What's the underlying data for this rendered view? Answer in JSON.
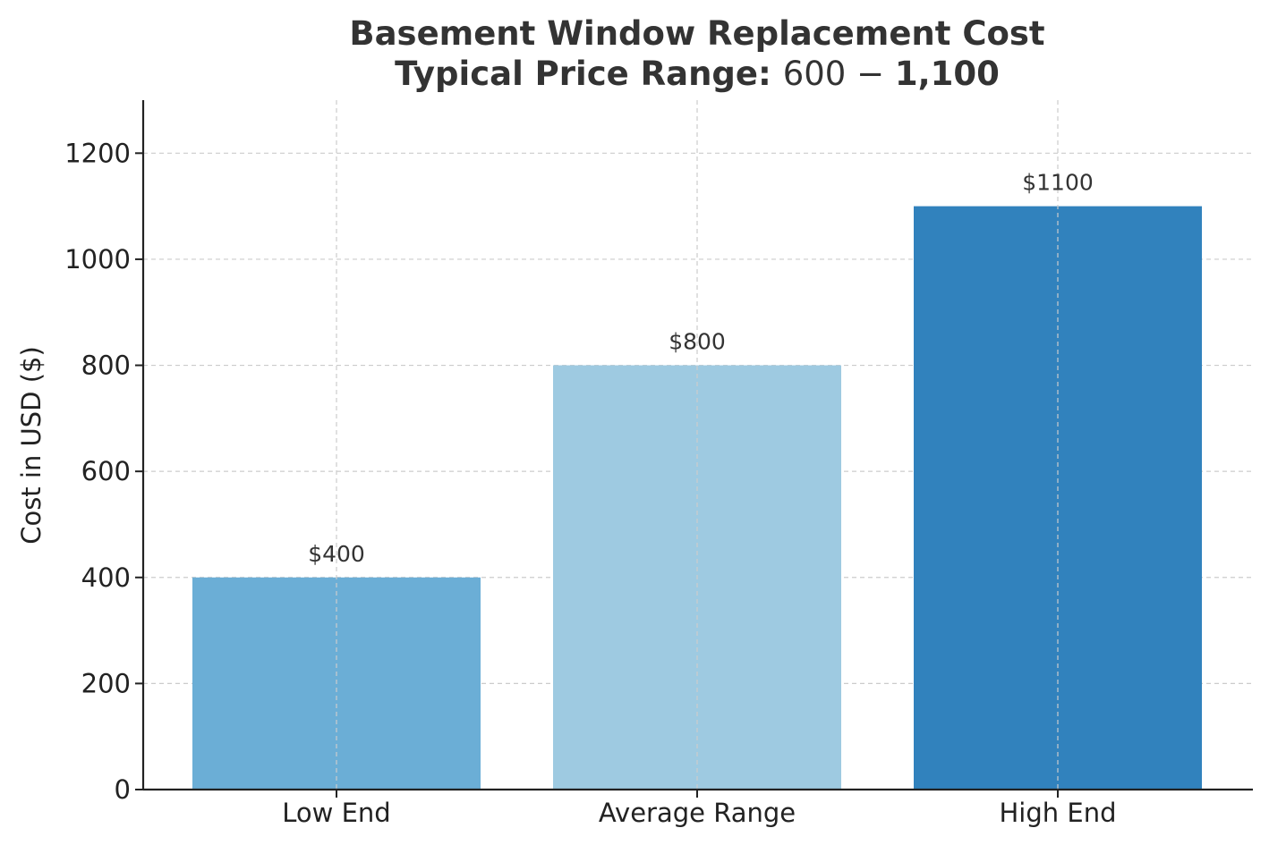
{
  "chart_data": {
    "type": "bar",
    "title_line1": "Basement Window Replacement Cost",
    "title_line2_bold": "Typical Price Range: ",
    "title_line2_math": "600 − ",
    "title_line2_end": "1,100",
    "categories": [
      "Low End",
      "Average Range",
      "High End"
    ],
    "values": [
      400,
      800,
      1100
    ],
    "data_labels": [
      "$400",
      "$800",
      "$1100"
    ],
    "colors": [
      "#6baed6",
      "#9ecae1",
      "#3182bd"
    ],
    "ylabel": "Cost in USD ($)",
    "xlabel": "",
    "ylim": [
      0,
      1300
    ],
    "yticks": [
      "0",
      "200",
      "400",
      "600",
      "800",
      "1000",
      "1200"
    ],
    "grid": true
  }
}
